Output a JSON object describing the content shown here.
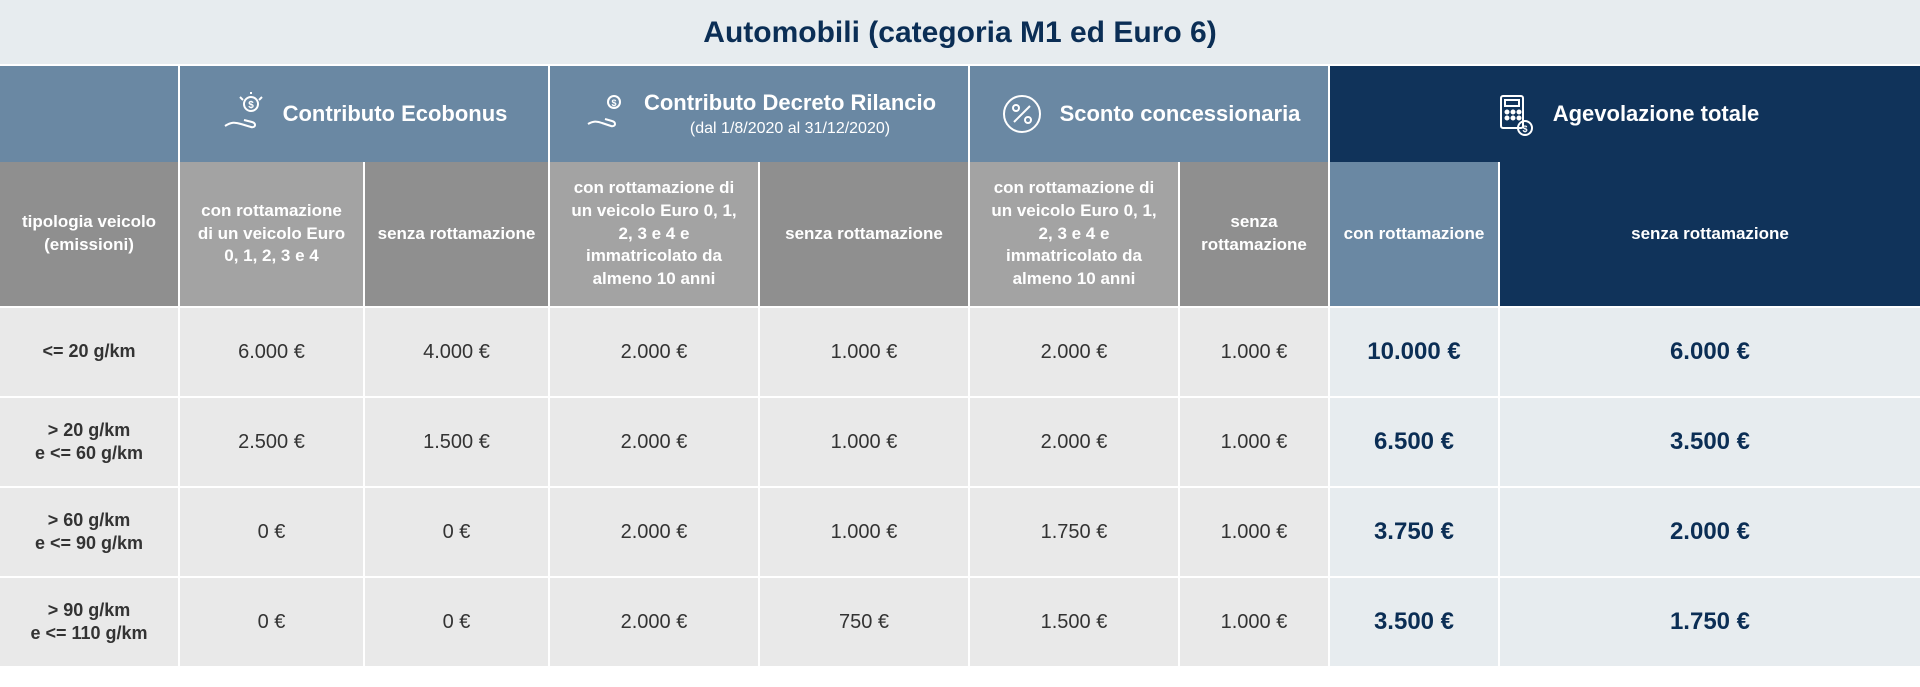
{
  "title": "Automobili (categoria M1 ed Euro 6)",
  "columns": {
    "left_label": "tipologia veicolo (emissioni)",
    "groups": [
      {
        "label": "Contributo Ecobonus",
        "sub": "",
        "icon": "hand-money"
      },
      {
        "label": "Contributo Decreto Rilancio",
        "sub": "(dal 1/8/2020 al 31/12/2020)",
        "icon": "hand-coin"
      },
      {
        "label": "Sconto concessionaria",
        "sub": "",
        "icon": "percent"
      },
      {
        "label": "Agevolazione totale",
        "sub": "",
        "icon": "calculator"
      }
    ],
    "sub": {
      "eco": {
        "with": "con rottamazione di un veicolo Euro 0, 1, 2, 3 e 4",
        "without": "senza rottamazione"
      },
      "dr": {
        "with": "con rottamazione di un veicolo Euro 0, 1, 2, 3 e 4 e immatricolato da almeno 10 anni",
        "without": "senza rottamazione"
      },
      "sc": {
        "with": "con rottamazione di un veicolo Euro 0, 1, 2, 3 e 4 e immatricolato da almeno 10 anni",
        "without": "senza rottamazione"
      },
      "tot": {
        "with": "con rottamazione",
        "without": "senza rottamazione"
      }
    }
  },
  "rows": [
    {
      "label": "<= 20 g/km",
      "eco_with": "6.000 €",
      "eco_without": "4.000 €",
      "dr_with": "2.000 €",
      "dr_without": "1.000 €",
      "sc_with": "2.000 €",
      "sc_without": "1.000 €",
      "tot_with": "10.000 €",
      "tot_without": "6.000 €"
    },
    {
      "label": "> 20 g/km e <= 60 g/km",
      "eco_with": "2.500 €",
      "eco_without": "1.500 €",
      "dr_with": "2.000 €",
      "dr_without": "1.000 €",
      "sc_with": "2.000 €",
      "sc_without": "1.000 €",
      "tot_with": "6.500 €",
      "tot_without": "3.500 €"
    },
    {
      "label": "> 60 g/km e <= 90 g/km",
      "eco_with": "0 €",
      "eco_without": "0 €",
      "dr_with": "2.000 €",
      "dr_without": "1.000 €",
      "sc_with": "1.750 €",
      "sc_without": "1.000 €",
      "tot_with": "3.750 €",
      "tot_without": "2.000 €"
    },
    {
      "label": "> 90 g/km e <= 110 g/km",
      "eco_with": "0 €",
      "eco_without": "0 €",
      "dr_with": "2.000 €",
      "dr_without": "750 €",
      "sc_with": "1.500 €",
      "sc_without": "1.000 €",
      "tot_with": "3.500 €",
      "tot_without": "1.750 €"
    }
  ],
  "colors": {
    "title_bg": "#e7ecef",
    "title_text": "#0b2e55",
    "hdr_light": "#6a88a3",
    "hdr_dark": "#10335a",
    "sub_gray_dark": "#8f8f8f",
    "sub_gray_light": "#a3a3a3",
    "cell_bg": "#e9e9e9",
    "total_bg": "#e7ecef",
    "total_text": "#0b2e55"
  }
}
